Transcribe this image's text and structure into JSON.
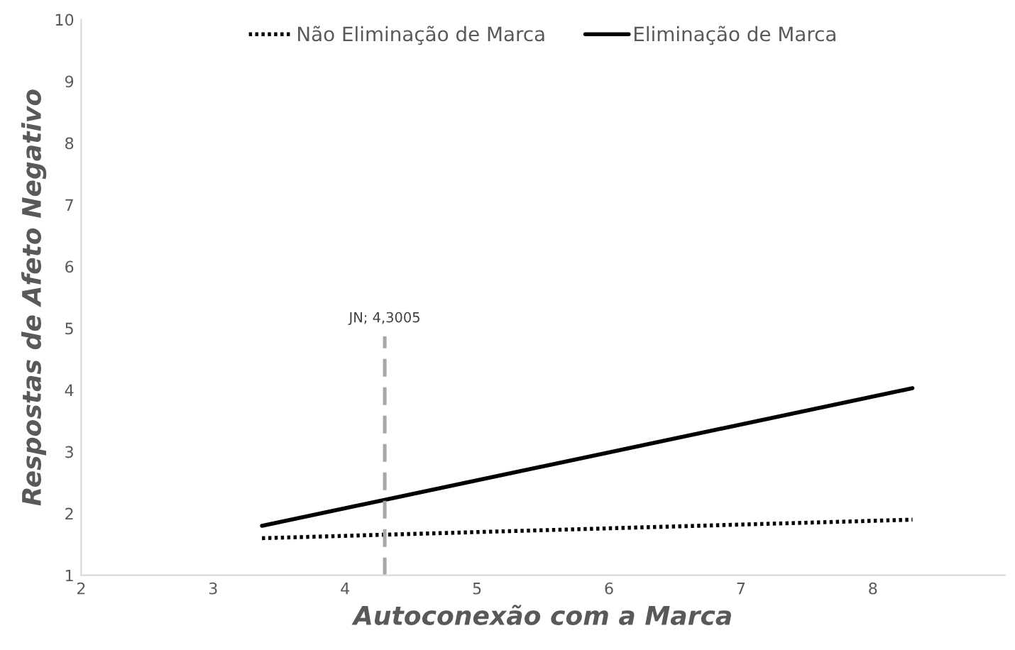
{
  "chart_data": {
    "type": "line",
    "xlabel": "Autoconexão com a Marca",
    "ylabel": "Respostas de Afeto Negativo",
    "x": [
      3.37,
      8.3
    ],
    "series": [
      {
        "name": "Não Eliminação de Marca",
        "color": "#000000",
        "values": [
          1.6,
          1.9
        ],
        "line_style": "dotted"
      },
      {
        "name": "Eliminação de Marca",
        "color": "#000000",
        "values": [
          1.8,
          4.03
        ],
        "line_style": "solid"
      }
    ],
    "xlim": [
      2,
      9
    ],
    "xticks": [
      2,
      3,
      4,
      5,
      6,
      7,
      8
    ],
    "ylim": [
      1,
      10
    ],
    "yticks": [
      1,
      2,
      3,
      4,
      5,
      6,
      7,
      8,
      9,
      10
    ],
    "ref_lines": [
      {
        "axis": "x",
        "value": 4.3005,
        "label": "JN; 4,3005",
        "color": "#a6a6a6",
        "line_style": "dashed"
      }
    ],
    "grid": false,
    "legend": "top",
    "marker": "none"
  }
}
